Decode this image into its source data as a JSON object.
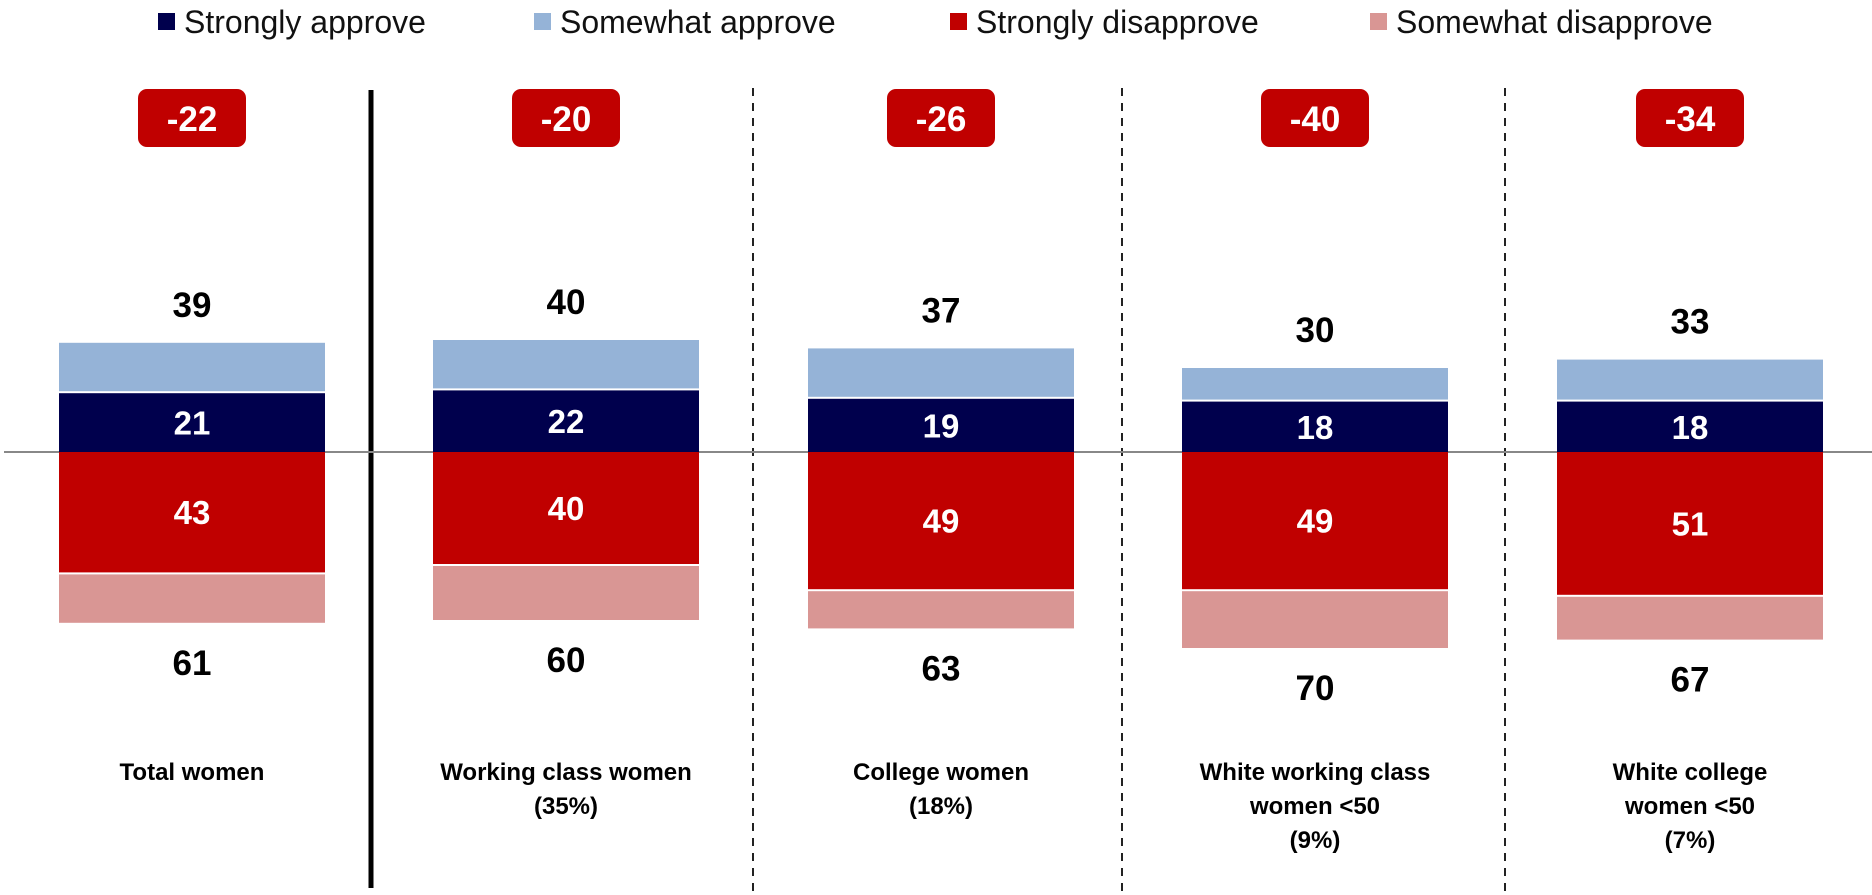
{
  "chart_data": {
    "type": "bar",
    "stacked": "diverging",
    "categories": [
      [
        "Total women"
      ],
      [
        "Working class women",
        "(35%)"
      ],
      [
        "College women",
        "(18%)"
      ],
      [
        "White working class",
        "women <50",
        "(9%)"
      ],
      [
        "White college",
        "women <50",
        "(7%)"
      ]
    ],
    "series": [
      {
        "name": "Strongly approve",
        "values": [
          21,
          22,
          19,
          18,
          18
        ]
      },
      {
        "name": "Somewhat approve",
        "values": [
          18,
          18,
          18,
          12,
          15
        ]
      },
      {
        "name": "Strongly disapprove",
        "values": [
          43,
          40,
          49,
          49,
          51
        ]
      },
      {
        "name": "Somewhat disapprove",
        "values": [
          18,
          20,
          14,
          21,
          16
        ]
      }
    ],
    "approve_totals": [
      39,
      40,
      37,
      30,
      33
    ],
    "disapprove_totals": [
      61,
      60,
      63,
      70,
      67
    ],
    "net": [
      "-22",
      "-20",
      "-26",
      "-40",
      "-34"
    ],
    "legend_position": "top",
    "colors": {
      "strongly_approve": "#00004d",
      "somewhat_approve": "#95b3d7",
      "strongly_disapprove": "#c00000",
      "somewhat_disapprove": "#d99694",
      "net_badge": "#c00000"
    }
  }
}
